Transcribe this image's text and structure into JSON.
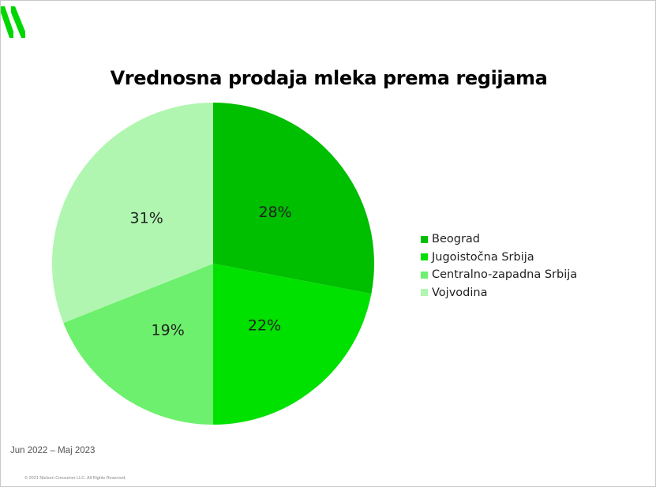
{
  "brand": {
    "logo_icon": "nielsen-stripes-logo-icon",
    "color": "#00D600"
  },
  "chart_data": {
    "type": "pie",
    "title": "Vrednosna prodaja mleka prema regijama",
    "categories": [
      "Beograd",
      "Jugoistočna Srbija",
      "Centralno-zapadna Srbija",
      "Vojvodina"
    ],
    "values": [
      28,
      22,
      19,
      31
    ],
    "labels": [
      "28%",
      "22%",
      "19%",
      "31%"
    ],
    "colors": [
      "#00BE00",
      "#00E100",
      "#6DF06D",
      "#B0F6B0"
    ],
    "legend_position": "right"
  },
  "footer": {
    "period": "Jun 2022 – Maj 2023",
    "copyright": "© 2021 Nielsen Consumer LLC. All Rights Reserved."
  }
}
